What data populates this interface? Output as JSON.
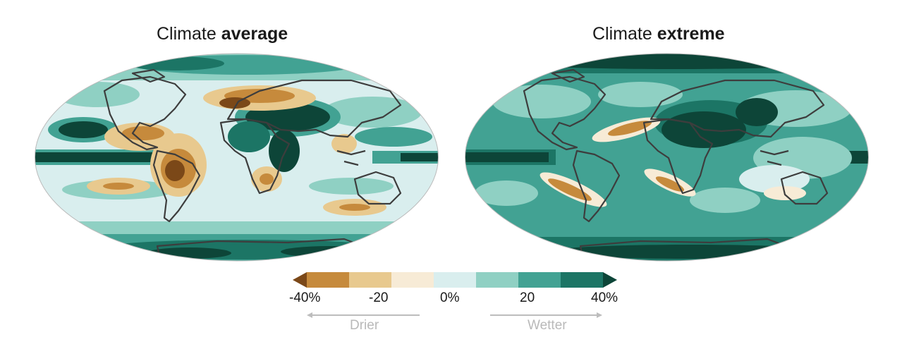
{
  "maps": [
    {
      "title_prefix": "Climate ",
      "title_bold": "average"
    },
    {
      "title_prefix": "Climate ",
      "title_bold": "extreme"
    }
  ],
  "legend": {
    "colors": [
      "#7b4818",
      "#c68a3c",
      "#e8c98e",
      "#f7ebd6",
      "#d9eeee",
      "#8fd0c3",
      "#42a293",
      "#1c7565",
      "#0d4538"
    ],
    "ticks": [
      "-40%",
      "-20",
      "0%",
      "20",
      "40%"
    ],
    "drier_label": "Drier",
    "wetter_label": "Wetter"
  }
}
